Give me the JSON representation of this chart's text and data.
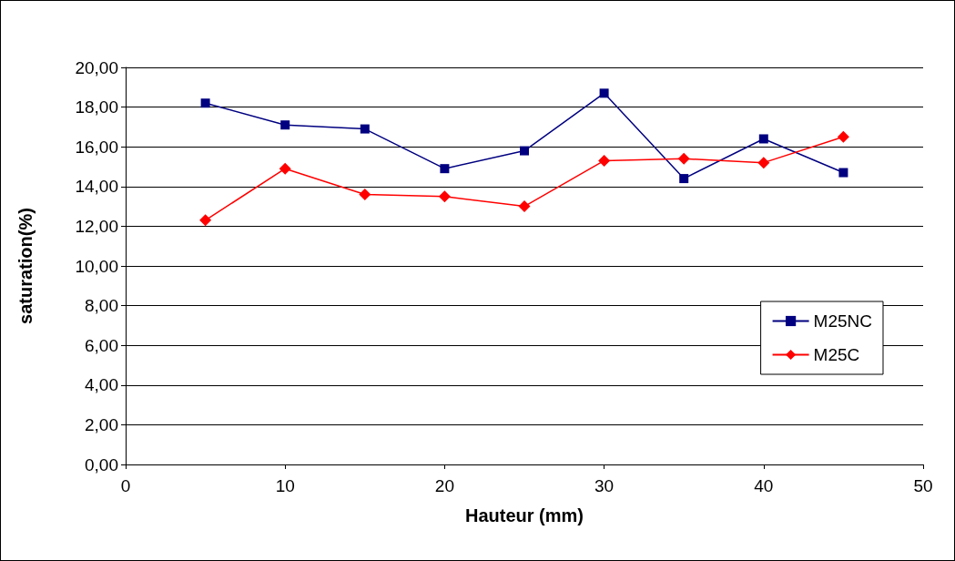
{
  "chart_data": {
    "type": "line",
    "xlabel": "Hauteur (mm)",
    "ylabel": "saturation(%)",
    "x": [
      5,
      10,
      15,
      20,
      25,
      30,
      35,
      40,
      45
    ],
    "series": [
      {
        "name": "M25NC",
        "color": "#000080",
        "marker": "square",
        "values": [
          18.2,
          17.1,
          16.9,
          14.9,
          15.8,
          18.7,
          14.4,
          16.4,
          14.7
        ]
      },
      {
        "name": "M25C",
        "color": "#ff0000",
        "marker": "diamond",
        "values": [
          12.3,
          14.9,
          13.6,
          13.5,
          13.0,
          15.3,
          15.4,
          15.2,
          16.5
        ]
      }
    ],
    "xlim": [
      0,
      50
    ],
    "xticks": [
      0,
      10,
      20,
      30,
      40,
      50
    ],
    "ylim": [
      0,
      20
    ],
    "yticks": [
      {
        "value": 0,
        "label": "0,00"
      },
      {
        "value": 2,
        "label": "2,00"
      },
      {
        "value": 4,
        "label": "4,00"
      },
      {
        "value": 6,
        "label": "6,00"
      },
      {
        "value": 8,
        "label": "8,00"
      },
      {
        "value": 10,
        "label": "10,00"
      },
      {
        "value": 12,
        "label": "12,00"
      },
      {
        "value": 14,
        "label": "14,00"
      },
      {
        "value": 16,
        "label": "16,00"
      },
      {
        "value": 18,
        "label": "18,00"
      },
      {
        "value": 20,
        "label": "20,00"
      }
    ],
    "grid": "y",
    "legend": "right",
    "line_style": "solid"
  }
}
